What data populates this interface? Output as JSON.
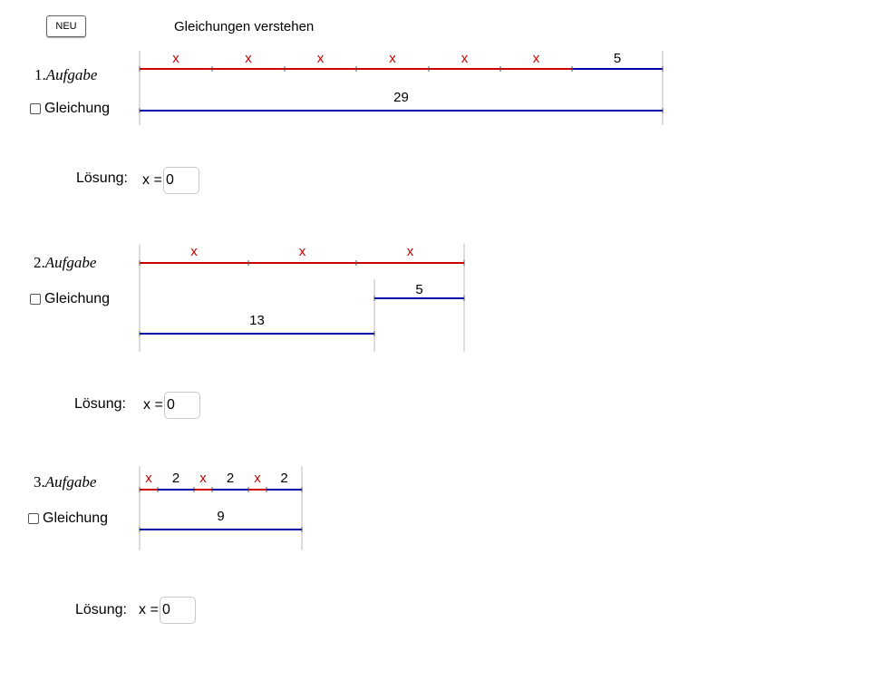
{
  "app": {
    "new_button": "NEU",
    "title": "Gleichungen verstehen"
  },
  "colors": {
    "x_segment": "#cc0000",
    "const_segment": "#0000aa",
    "guide": "#bbbbbb"
  },
  "tasks": [
    {
      "number": "1.",
      "label": "Aufgabe",
      "checkbox_label": "Gleichung",
      "solution_label": "Lösung:",
      "x_label": "x =",
      "answer": "0",
      "top_segments": [
        "x",
        "x",
        "x",
        "x",
        "x",
        "x",
        "5"
      ],
      "bottom_segments": [
        "29"
      ]
    },
    {
      "number": "2.",
      "label": "Aufgabe",
      "checkbox_label": "Gleichung",
      "solution_label": "Lösung:",
      "x_label": "x =",
      "answer": "0",
      "top_segments": [
        "x",
        "x",
        "x"
      ],
      "middle_segments": [
        "5"
      ],
      "bottom_segments": [
        "13"
      ]
    },
    {
      "number": "3.",
      "label": "Aufgabe",
      "checkbox_label": "Gleichung",
      "solution_label": "Lösung:",
      "x_label": "x =",
      "answer": "0",
      "top_segments": [
        "x",
        "2",
        "x",
        "2",
        "x",
        "2"
      ],
      "bottom_segments": [
        "9"
      ]
    }
  ]
}
